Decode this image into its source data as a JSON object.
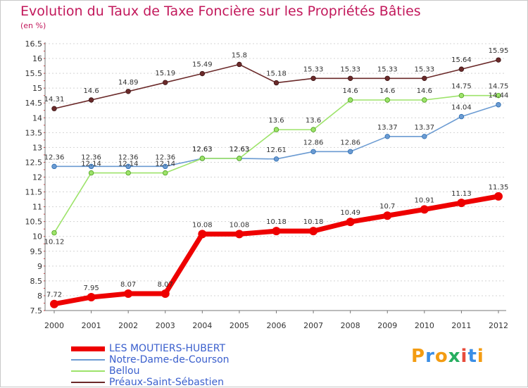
{
  "chart_data": {
    "type": "line",
    "title": "Evolution du Taux de Taxe Foncière sur les Propriétés Bâties",
    "unit_label": "(en %)",
    "xlabel": "",
    "ylabel": "",
    "categories": [
      "2000",
      "2001",
      "2002",
      "2003",
      "2004",
      "2005",
      "2006",
      "2007",
      "2008",
      "2009",
      "2010",
      "2011",
      "2012"
    ],
    "y_ticks": [
      "7.5",
      "8",
      "8.5",
      "9",
      "9.5",
      "10",
      "10.5",
      "11",
      "11.5",
      "12",
      "12.5",
      "13",
      "13.5",
      "14",
      "14.5",
      "15",
      "15.5",
      "16",
      "16.5"
    ],
    "ylim": [
      7.5,
      16.5
    ],
    "grid": "horizontal dashed",
    "series": [
      {
        "name": "LES MOUTIERS-HUBERT",
        "color": "#ee0000",
        "values": [
          7.72,
          7.95,
          8.07,
          8.07,
          10.08,
          10.08,
          10.18,
          10.18,
          10.49,
          10.7,
          10.91,
          11.13,
          11.35
        ],
        "labels": [
          "7.72",
          "7.95",
          "8.07",
          "8.07",
          "10.08",
          "10.08",
          "10.18",
          "10.18",
          "10.49",
          "10.7",
          "10.91",
          "11.13",
          "11.35"
        ]
      },
      {
        "name": "Notre-Dame-de-Courson",
        "color": "#6b9bd2",
        "values": [
          12.36,
          12.36,
          12.36,
          12.36,
          12.63,
          12.63,
          12.61,
          12.86,
          12.86,
          13.37,
          13.37,
          14.04,
          14.44
        ],
        "labels": [
          "12.36",
          "12.36",
          "12.36",
          "12.36",
          "12.63",
          "12.63",
          "12.61",
          "12.86",
          "12.86",
          "13.37",
          "13.37",
          "14.04",
          "14.44"
        ]
      },
      {
        "name": "Bellou",
        "color": "#9de36a",
        "values": [
          10.12,
          12.14,
          12.14,
          12.14,
          12.63,
          12.63,
          13.6,
          13.6,
          14.6,
          14.6,
          14.6,
          14.75,
          14.75
        ],
        "labels": [
          "10.12",
          "12.14",
          "12.14",
          "12.14",
          "12.63",
          "12.63",
          "13.6",
          "13.6",
          "14.6",
          "14.6",
          "14.6",
          "14.75",
          "14.75"
        ]
      },
      {
        "name": "Préaux-Saint-Sébastien",
        "color": "#6b2a2a",
        "values": [
          14.31,
          14.6,
          14.89,
          15.19,
          15.49,
          15.8,
          15.18,
          15.33,
          15.33,
          15.33,
          15.33,
          15.64,
          15.95
        ],
        "labels": [
          "14.31",
          "14.6",
          "14.89",
          "15.19",
          "15.49",
          "15.8",
          "15.18",
          "15.33",
          "15.33",
          "15.33",
          "15.33",
          "15.64",
          "15.95"
        ]
      }
    ]
  },
  "logo": {
    "text": "Proxiti",
    "colors": [
      "#f39c12",
      "#3a8ee6",
      "#f39c12",
      "#27ae60",
      "#e74c3c",
      "#3a8ee6",
      "#f39c12"
    ]
  }
}
